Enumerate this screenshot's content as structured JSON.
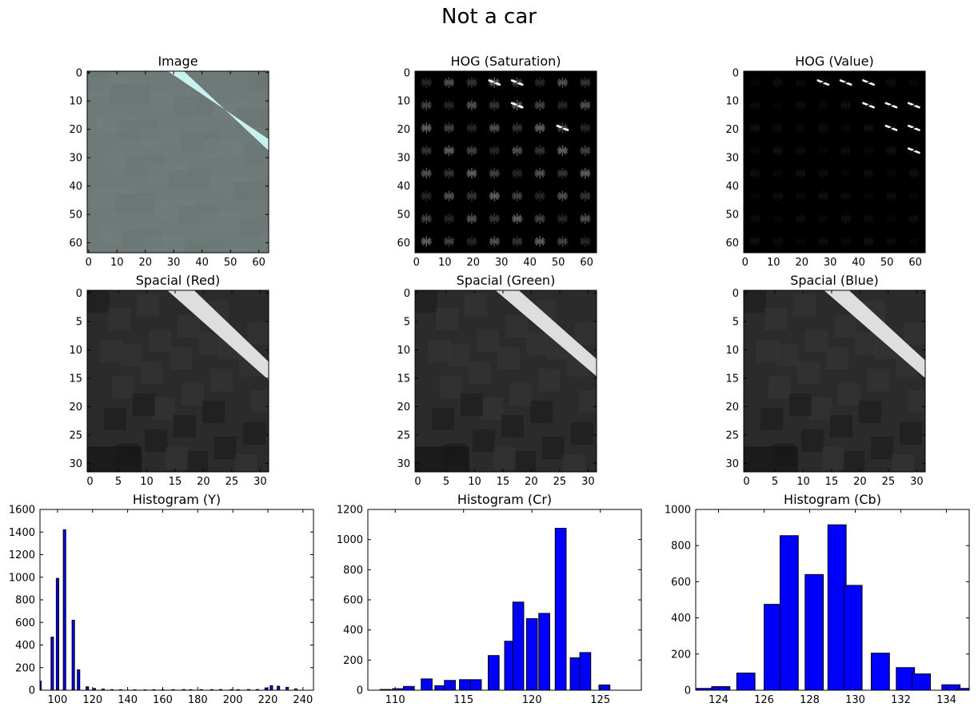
{
  "figure": {
    "title": "Not a car"
  },
  "chart_data": [
    {
      "type": "heatmap",
      "name": "image-panel",
      "title": "Image",
      "source": "rgb-photo",
      "xlim": [
        0,
        63
      ],
      "ylim": [
        0,
        63
      ],
      "xticks": [
        0,
        10,
        20,
        30,
        40,
        50,
        60
      ],
      "yticks": [
        0,
        10,
        20,
        30,
        40,
        50,
        60
      ],
      "colors": {
        "background": "#6d7a78",
        "stripe": "#c7f2ef"
      }
    },
    {
      "type": "heatmap",
      "name": "hog-saturation-panel",
      "title": "HOG (Saturation)",
      "source": "hog",
      "xlim": [
        0,
        63
      ],
      "ylim": [
        0,
        63
      ],
      "xticks": [
        0,
        10,
        20,
        30,
        40,
        50,
        60
      ],
      "yticks": [
        0,
        10,
        20,
        30,
        40,
        50,
        60
      ],
      "cmap": "gray",
      "bright_cells": [
        [
          0,
          3
        ],
        [
          0,
          4
        ],
        [
          1,
          4
        ],
        [
          2,
          6
        ]
      ],
      "base_intensity": 0.35
    },
    {
      "type": "heatmap",
      "name": "hog-value-panel",
      "title": "HOG (Value)",
      "source": "hog",
      "xlim": [
        0,
        63
      ],
      "ylim": [
        0,
        63
      ],
      "xticks": [
        0,
        10,
        20,
        30,
        40,
        50,
        60
      ],
      "yticks": [
        0,
        10,
        20,
        30,
        40,
        50,
        60
      ],
      "cmap": "gray",
      "bright_cells": [
        [
          0,
          3
        ],
        [
          0,
          4
        ],
        [
          0,
          5
        ],
        [
          1,
          5
        ],
        [
          1,
          6
        ],
        [
          1,
          7
        ],
        [
          2,
          6
        ],
        [
          2,
          7
        ],
        [
          3,
          7
        ]
      ],
      "base_intensity": 0.06
    },
    {
      "type": "heatmap",
      "name": "spacial-red-panel",
      "title": "Spacial (Red)",
      "source": "gray-stripe",
      "xlim": [
        0,
        31
      ],
      "ylim": [
        0,
        31
      ],
      "xticks": [
        0,
        5,
        10,
        15,
        20,
        25,
        30
      ],
      "yticks": [
        0,
        5,
        10,
        15,
        20,
        25,
        30
      ],
      "cmap": "gray",
      "stripe_width": 3
    },
    {
      "type": "heatmap",
      "name": "spacial-green-panel",
      "title": "Spacial (Green)",
      "source": "gray-stripe",
      "xlim": [
        0,
        31
      ],
      "ylim": [
        0,
        31
      ],
      "xticks": [
        0,
        5,
        10,
        15,
        20,
        25,
        30
      ],
      "yticks": [
        0,
        5,
        10,
        15,
        20,
        25,
        30
      ],
      "cmap": "gray",
      "stripe_width": 2.6
    },
    {
      "type": "heatmap",
      "name": "spacial-blue-panel",
      "title": "Spacial (Blue)",
      "source": "gray-stripe",
      "xlim": [
        0,
        31
      ],
      "ylim": [
        0,
        31
      ],
      "xticks": [
        0,
        5,
        10,
        15,
        20,
        25,
        30
      ],
      "yticks": [
        0,
        5,
        10,
        15,
        20,
        25,
        30
      ],
      "cmap": "gray",
      "stripe_width": 2.8
    },
    {
      "type": "bar",
      "name": "histogram-y-panel",
      "title": "Histogram (Y)",
      "xlim": [
        90,
        246
      ],
      "ylim": [
        0,
        1600
      ],
      "xticks": [
        100,
        120,
        140,
        160,
        180,
        200,
        220,
        240
      ],
      "yticks": [
        0,
        200,
        400,
        600,
        800,
        1000,
        1200,
        1400,
        1600
      ],
      "bar_width": 1.4,
      "bar_color": "#0000ff",
      "x": [
        90,
        97,
        100,
        104,
        109,
        112,
        117,
        121,
        126,
        131,
        136,
        144,
        150,
        155,
        160,
        166,
        172,
        176,
        182,
        188,
        193,
        199,
        203,
        209,
        214,
        219,
        222,
        226,
        231,
        236
      ],
      "values": [
        80,
        470,
        990,
        1420,
        620,
        180,
        30,
        15,
        10,
        5,
        5,
        4,
        4,
        5,
        4,
        5,
        6,
        5,
        5,
        5,
        6,
        5,
        5,
        6,
        6,
        20,
        40,
        35,
        25,
        12
      ]
    },
    {
      "type": "bar",
      "name": "histogram-cr-panel",
      "title": "Histogram (Cr)",
      "xlim": [
        108,
        128
      ],
      "ylim": [
        0,
        1200
      ],
      "xticks": [
        110,
        115,
        120,
        125
      ],
      "yticks": [
        0,
        200,
        400,
        600,
        800,
        1000,
        1200
      ],
      "bar_width": 0.8,
      "bar_color": "#0000ff",
      "x": [
        109.3,
        110.2,
        111,
        112.3,
        113.3,
        114,
        115.1,
        115.9,
        117.2,
        118.4,
        119,
        120,
        120.9,
        122.1,
        123.2,
        123.9,
        125.3
      ],
      "values": [
        5,
        10,
        25,
        75,
        30,
        65,
        70,
        70,
        230,
        325,
        585,
        475,
        510,
        1075,
        215,
        250,
        35
      ]
    },
    {
      "type": "bar",
      "name": "histogram-cb-panel",
      "title": "Histogram (Cb)",
      "xlim": [
        123,
        135
      ],
      "ylim": [
        0,
        1000
      ],
      "xticks": [
        124,
        126,
        128,
        130,
        132,
        134
      ],
      "yticks": [
        0,
        200,
        400,
        600,
        800,
        1000
      ],
      "bar_width": 0.8,
      "bar_color": "#0000ff",
      "x": [
        123.3,
        124.1,
        125.2,
        126.4,
        127.1,
        128.2,
        129.2,
        129.9,
        131.1,
        132.2,
        132.9,
        134.2,
        134.9
      ],
      "values": [
        10,
        20,
        95,
        475,
        855,
        640,
        915,
        580,
        205,
        125,
        90,
        30,
        10
      ]
    }
  ]
}
